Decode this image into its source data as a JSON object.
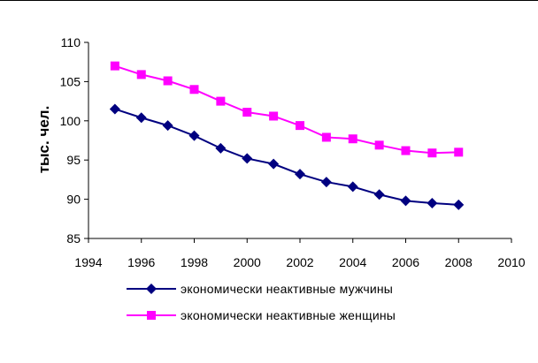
{
  "chart_data": {
    "type": "line",
    "ylabel": "тыс. чел.",
    "xlabel": "",
    "xlim": [
      1994,
      2010
    ],
    "ylim": [
      85,
      110
    ],
    "x_ticks": [
      "1994",
      "1996",
      "1998",
      "2000",
      "2002",
      "2004",
      "2006",
      "2008",
      "2010"
    ],
    "y_ticks": [
      "85",
      "90",
      "95",
      "100",
      "105",
      "110"
    ],
    "x": [
      1995,
      1996,
      1997,
      1998,
      1999,
      2000,
      2001,
      2002,
      2003,
      2004,
      2005,
      2006,
      2007,
      2008
    ],
    "grid": false,
    "legend_position": "bottom",
    "series": [
      {
        "name": "экономически неактивные мужчины",
        "marker": "diamond",
        "color": "#000080",
        "values": [
          101.5,
          100.4,
          99.4,
          98.1,
          96.5,
          95.2,
          94.5,
          93.2,
          92.2,
          91.6,
          90.6,
          89.8,
          89.5,
          89.3
        ]
      },
      {
        "name": "экономически неактивные женщины",
        "marker": "square",
        "color": "#FF00FF",
        "values": [
          107.0,
          105.9,
          105.1,
          104.0,
          102.5,
          101.1,
          100.6,
          99.4,
          97.9,
          97.7,
          96.9,
          96.2,
          95.9,
          96.0
        ]
      }
    ]
  }
}
